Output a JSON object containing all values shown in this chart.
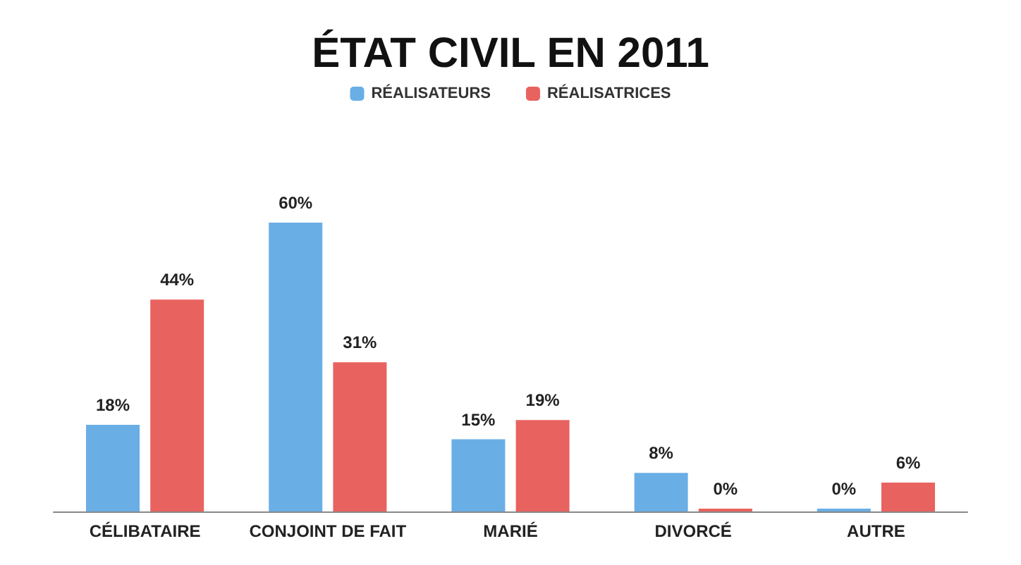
{
  "chart_data": {
    "type": "bar",
    "title": "ÉTAT CIVIL EN 2011",
    "categories": [
      "CÉLIBATAIRE",
      "CONJOINT DE FAIT",
      "MARIÉ",
      "DIVORCÉ",
      "AUTRE"
    ],
    "series": [
      {
        "name": "RÉALISATEURS",
        "color": "#6aaee6",
        "values": [
          18,
          60,
          15,
          8,
          0
        ],
        "value_labels": [
          "18%",
          "60%",
          "15%",
          "8%",
          "0%"
        ]
      },
      {
        "name": "RÉALISATRICES",
        "color": "#e8635f",
        "values": [
          44,
          31,
          19,
          0,
          6
        ],
        "value_labels": [
          "44%",
          "31%",
          "19%",
          "0%",
          "6%"
        ]
      }
    ],
    "legend": "top",
    "grid": false
  }
}
